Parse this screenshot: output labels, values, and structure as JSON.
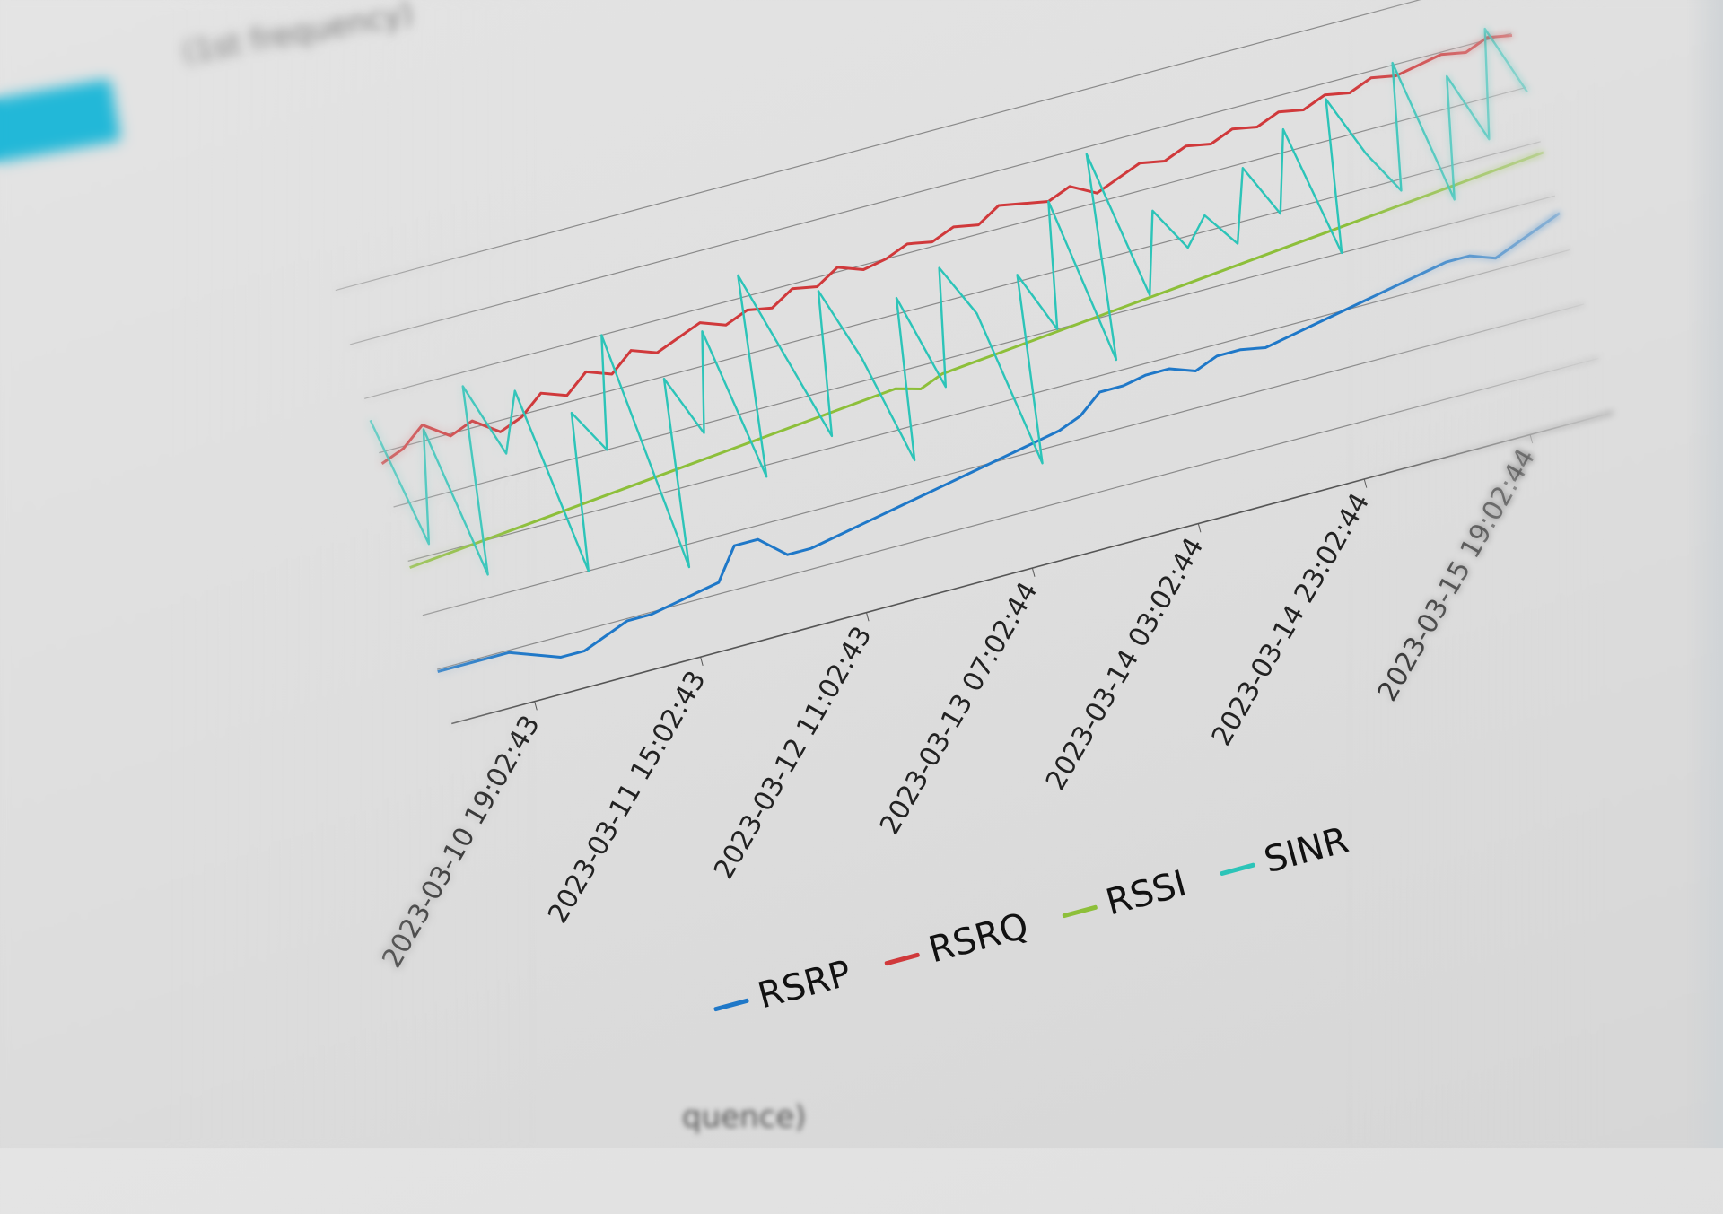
{
  "header": {
    "button_label": "",
    "subtitle": "(1st frequency)",
    "lower_subtitle": "quence)"
  },
  "chart_data": {
    "type": "line",
    "title": "",
    "xlabel": "",
    "ylabel": "",
    "ylim": [
      0,
      100
    ],
    "grid": true,
    "legend_position": "bottom",
    "x_ticks": [
      "2023-03-10 19:02:43",
      "2023-03-11 15:02:43",
      "2023-03-12 11:02:43",
      "2023-03-13 07:02:44",
      "2023-03-14 03:02:44",
      "2023-03-14 23:02:44",
      "2023-03-15 19:02:44"
    ],
    "series": [
      {
        "name": "RSRP",
        "color": "#1f78c8",
        "values": [
          12,
          12,
          12,
          12,
          10,
          8,
          8,
          10,
          12,
          12,
          13,
          14,
          15,
          22,
          22,
          17,
          17,
          18,
          19,
          20,
          21,
          22,
          23,
          24,
          25,
          26,
          27,
          28,
          30,
          34,
          34,
          35,
          35,
          33,
          35,
          35,
          34,
          35,
          36,
          37,
          38,
          39,
          40,
          41,
          42,
          42,
          40,
          42,
          44,
          46
        ]
      },
      {
        "name": "RSRQ",
        "color": "#d0393b",
        "values": [
          60,
          62,
          66,
          62,
          64,
          60,
          62,
          66,
          64,
          68,
          66,
          70,
          68,
          70,
          72,
          70,
          72,
          71,
          74,
          73,
          76,
          74,
          75,
          77,
          76,
          78,
          77,
          80,
          79,
          78,
          80,
          77,
          79,
          81,
          80,
          82,
          81,
          83,
          82,
          84,
          83,
          85,
          84,
          86,
          85,
          86,
          87,
          86,
          88,
          87
        ]
      },
      {
        "name": "RSSI",
        "color": "#8dbf3a",
        "values": [
          36,
          36.5,
          37,
          37.5,
          38,
          38.5,
          39,
          39.5,
          40,
          40.5,
          41,
          41.5,
          42,
          42.5,
          43,
          43.5,
          44,
          44.5,
          45,
          45.5,
          46,
          46.5,
          45,
          47,
          47.5,
          48,
          48.5,
          49,
          49.5,
          50,
          50.5,
          51,
          51.5,
          52,
          52.5,
          53,
          53.5,
          54,
          54.5,
          55,
          55.5,
          56,
          56.5,
          57,
          57.5,
          58,
          58.5,
          59,
          59.5,
          60
        ]
      },
      {
        "name": "SINR",
        "color": "#2cc4b8",
        "values": [
          70,
          40,
          65,
          30,
          72,
          55,
          68,
          25,
          60,
          50,
          75,
          20,
          62,
          48,
          70,
          35,
          80,
          60,
          40,
          72,
          55,
          30,
          66,
          44,
          70,
          58,
          22,
          64,
          50,
          78,
          40,
          86,
          52,
          70,
          60,
          66,
          58,
          74,
          62,
          80,
          50,
          84,
          70,
          60,
          88,
          55,
          82,
          66,
          90,
          74
        ]
      }
    ]
  }
}
